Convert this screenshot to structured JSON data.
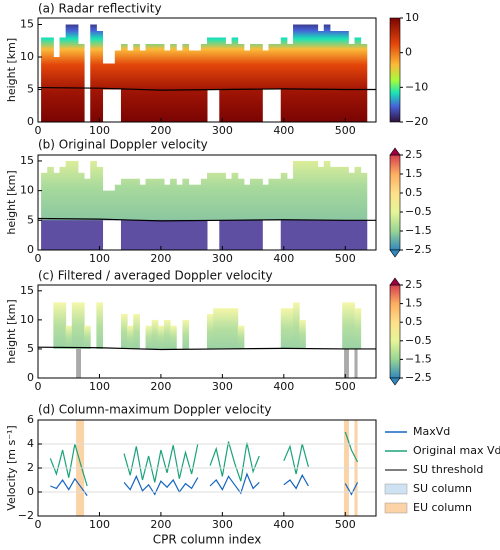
{
  "chart_data": [
    {
      "type": "heatmap",
      "title": "(a) Radar reflectivity",
      "ylabel": "height [km]",
      "xlim": [
        0,
        550
      ],
      "xticks": [
        0,
        100,
        200,
        300,
        400,
        500
      ],
      "ylim": [
        0,
        16
      ],
      "yticks": [
        0,
        5,
        10,
        15
      ],
      "x": [
        10,
        20,
        30,
        40,
        50,
        60,
        70,
        80,
        90,
        100,
        110,
        120,
        130,
        140,
        150,
        160,
        170,
        180,
        190,
        200,
        210,
        220,
        230,
        240,
        250,
        260,
        270,
        280,
        290,
        300,
        310,
        320,
        330,
        340,
        350,
        360,
        370,
        380,
        390,
        400,
        410,
        420,
        430,
        440,
        450,
        460,
        470,
        480,
        490,
        500,
        510,
        520,
        530
      ],
      "top": [
        13,
        13,
        10,
        13,
        15,
        15,
        12,
        null,
        15,
        14,
        9,
        9,
        11,
        12,
        11,
        12,
        11,
        12,
        12,
        12,
        11,
        12,
        11,
        12,
        11,
        11,
        12,
        13,
        13,
        13,
        12,
        13,
        12,
        11,
        12,
        12,
        11,
        12,
        12,
        13,
        12,
        15,
        15,
        15,
        15,
        14,
        15,
        14,
        14,
        14,
        12,
        13,
        12
      ],
      "base": [
        0,
        0,
        0,
        0,
        0,
        0,
        0,
        null,
        0,
        0,
        5,
        5,
        5,
        0,
        0,
        0,
        0,
        0,
        0,
        0,
        0,
        0,
        0,
        0,
        0,
        0,
        0,
        5,
        5,
        0,
        0,
        0,
        0,
        0,
        0,
        0,
        5,
        5,
        5,
        0,
        0,
        0,
        0,
        0,
        0,
        0,
        0,
        0,
        0,
        0,
        0,
        0,
        0
      ],
      "melting_layer": {
        "x": [
          0,
          100,
          200,
          300,
          400,
          500,
          550
        ],
        "values": [
          5.3,
          5.2,
          4.9,
          5.0,
          5.1,
          5.0,
          5.0
        ]
      },
      "colorbar": {
        "lim": [
          -20,
          10
        ],
        "ticks": [
          10,
          0,
          {
            "value": -10,
            "label": "−10"
          },
          {
            "value": -20,
            "label": "−20"
          }
        ]
      }
    },
    {
      "type": "heatmap",
      "title": "(b) Original Doppler velocity",
      "ylabel": "height [km]",
      "xlim": [
        0,
        550
      ],
      "xticks": [
        0,
        100,
        200,
        300,
        400,
        500
      ],
      "ylim": [
        0,
        16
      ],
      "yticks": [
        0,
        5,
        10,
        15
      ],
      "x": [
        10,
        20,
        30,
        40,
        50,
        60,
        70,
        80,
        90,
        100,
        110,
        120,
        130,
        140,
        150,
        160,
        170,
        180,
        190,
        200,
        210,
        220,
        230,
        240,
        250,
        260,
        270,
        280,
        290,
        300,
        310,
        320,
        330,
        340,
        350,
        360,
        370,
        380,
        390,
        400,
        410,
        420,
        430,
        440,
        450,
        460,
        470,
        480,
        490,
        500,
        510,
        520,
        530
      ],
      "top": [
        13,
        14,
        13,
        14,
        15,
        15,
        13,
        12,
        15,
        14,
        10,
        10,
        11,
        12,
        12,
        12,
        11,
        12,
        12,
        12,
        11,
        12,
        11,
        12,
        11,
        11,
        12,
        13,
        13,
        13,
        12,
        13,
        12,
        11,
        12,
        12,
        11,
        12,
        12,
        13,
        12,
        15,
        15,
        15,
        15,
        14,
        15,
        14,
        14,
        14,
        13,
        14,
        13
      ],
      "base": [
        0,
        0,
        0,
        0,
        0,
        0,
        0,
        0,
        0,
        0,
        5,
        5,
        5,
        0,
        0,
        0,
        0,
        0,
        0,
        0,
        0,
        0,
        0,
        0,
        0,
        0,
        0,
        5,
        5,
        0,
        0,
        0,
        0,
        0,
        0,
        0,
        5,
        5,
        5,
        0,
        0,
        0,
        0,
        0,
        0,
        0,
        0,
        0,
        0,
        0,
        0,
        0,
        0
      ],
      "melting_layer": {
        "x": [
          0,
          100,
          200,
          300,
          400,
          500,
          550
        ],
        "values": [
          5.3,
          5.2,
          4.9,
          5.0,
          5.1,
          5.0,
          5.0
        ]
      },
      "colorbar": {
        "lim": [
          -2.5,
          2.5
        ],
        "ticks": [
          2.5,
          1.5,
          0.5,
          {
            "value": -0.5,
            "label": "−0.5"
          },
          {
            "value": -1.5,
            "label": "−1.5"
          },
          {
            "value": -2.5,
            "label": "−2.5"
          }
        ]
      }
    },
    {
      "type": "heatmap",
      "title": "(c) Filtered / averaged Doppler velocity",
      "ylabel": "height [km]",
      "xlim": [
        0,
        550
      ],
      "xticks": [
        0,
        100,
        200,
        300,
        400,
        500
      ],
      "ylim": [
        0,
        16
      ],
      "yticks": [
        0,
        5,
        10,
        15
      ],
      "x": [
        10,
        20,
        30,
        40,
        50,
        60,
        70,
        80,
        90,
        100,
        110,
        120,
        130,
        140,
        150,
        160,
        170,
        180,
        190,
        200,
        210,
        220,
        230,
        240,
        250,
        260,
        270,
        280,
        290,
        300,
        310,
        320,
        330,
        340,
        350,
        360,
        370,
        380,
        390,
        400,
        410,
        420,
        430,
        440,
        450,
        460,
        470,
        480,
        490,
        500,
        510,
        520,
        530
      ],
      "top": [
        null,
        null,
        13,
        13,
        9,
        13,
        13,
        9,
        null,
        13,
        null,
        null,
        null,
        11,
        9,
        11,
        null,
        9,
        10,
        9,
        10,
        9,
        null,
        10,
        null,
        null,
        null,
        11,
        12,
        12,
        12,
        12,
        9,
        null,
        null,
        null,
        null,
        null,
        null,
        12,
        12,
        13,
        10,
        null,
        null,
        null,
        null,
        null,
        null,
        13,
        13,
        12,
        null
      ],
      "base": [
        null,
        null,
        5,
        5,
        5,
        5,
        5,
        5,
        null,
        5,
        null,
        null,
        null,
        5,
        5,
        5,
        null,
        5,
        5,
        5,
        5,
        5,
        null,
        5,
        null,
        null,
        null,
        5,
        5,
        5,
        5,
        5,
        5,
        null,
        null,
        null,
        null,
        null,
        null,
        5,
        5,
        5,
        5,
        null,
        null,
        null,
        null,
        null,
        null,
        5,
        5,
        5,
        null
      ],
      "highlight": [
        [
          62,
          70
        ],
        [
          498,
          506
        ],
        [
          515,
          520
        ]
      ],
      "melting_layer": {
        "x": [
          0,
          100,
          200,
          300,
          400,
          500,
          550
        ],
        "values": [
          5.3,
          5.2,
          4.9,
          5.0,
          5.1,
          5.0,
          5.0
        ]
      },
      "colorbar": {
        "lim": [
          -2.5,
          2.5
        ],
        "ticks": [
          2.5,
          1.5,
          0.5,
          {
            "value": -0.5,
            "label": "−0.5"
          },
          {
            "value": -1.5,
            "label": "−1.5"
          },
          {
            "value": -2.5,
            "label": "−2.5"
          }
        ]
      }
    },
    {
      "type": "line",
      "title": "(d) Column-maximum Doppler velocity",
      "xlabel": "CPR column index",
      "ylabel": "Velocity [m s⁻¹]",
      "xlim": [
        0,
        550
      ],
      "xticks": [
        0,
        100,
        200,
        300,
        400,
        500
      ],
      "ylim": [
        -2,
        6
      ],
      "yticks": [
        {
          "value": -2,
          "label": "−2"
        },
        0,
        2,
        4,
        6
      ],
      "grid": true,
      "x": [
        20,
        30,
        40,
        50,
        60,
        70,
        80,
        90,
        100,
        110,
        120,
        130,
        140,
        150,
        160,
        170,
        180,
        190,
        200,
        210,
        220,
        230,
        240,
        250,
        260,
        270,
        280,
        290,
        300,
        310,
        320,
        330,
        340,
        350,
        360,
        370,
        380,
        390,
        400,
        410,
        420,
        430,
        440,
        450,
        460,
        470,
        480,
        490,
        500,
        510,
        520,
        530
      ],
      "series": [
        {
          "name": "MaxVd",
          "color": "#1565c0",
          "values": [
            0.5,
            0.3,
            1.0,
            0.2,
            1.1,
            0.4,
            -0.3,
            null,
            null,
            null,
            null,
            null,
            0.8,
            0.2,
            1.3,
            0.1,
            0.6,
            -0.2,
            0.9,
            0.4,
            1.0,
            0.0,
            0.7,
            0.3,
            1.2,
            null,
            0.5,
            1.0,
            0.2,
            1.3,
            0.6,
            -0.1,
            1.5,
            0.3,
            0.8,
            null,
            null,
            null,
            0.6,
            1.0,
            0.3,
            1.4,
            0.5,
            null,
            null,
            null,
            null,
            null,
            0.7,
            -0.2,
            0.8,
            null
          ]
        },
        {
          "name": "Original max Vd",
          "color": "#1aa37a",
          "values": [
            2.8,
            1.5,
            3.5,
            1.2,
            4.0,
            2.2,
            0.5,
            null,
            null,
            null,
            null,
            null,
            3.2,
            1.4,
            3.8,
            1.0,
            3.0,
            0.8,
            3.5,
            1.6,
            3.9,
            1.1,
            3.3,
            1.5,
            4.0,
            null,
            2.2,
            3.6,
            1.3,
            4.2,
            2.4,
            0.9,
            4.1,
            1.7,
            3.0,
            null,
            null,
            null,
            2.6,
            3.8,
            1.5,
            4.0,
            2.1,
            null,
            null,
            null,
            null,
            null,
            5.0,
            3.5,
            2.5,
            null
          ]
        }
      ],
      "threshold": {
        "name": "SU threshold",
        "value": 2,
        "color": "#555555"
      },
      "su_column": {
        "name": "SU column",
        "color": "#cfe2f3",
        "spans": []
      },
      "eu_column": {
        "name": "EU column",
        "color": "#fbd3a6",
        "spans": [
          [
            62,
            75
          ],
          [
            498,
            506
          ],
          [
            515,
            520
          ]
        ]
      }
    }
  ]
}
